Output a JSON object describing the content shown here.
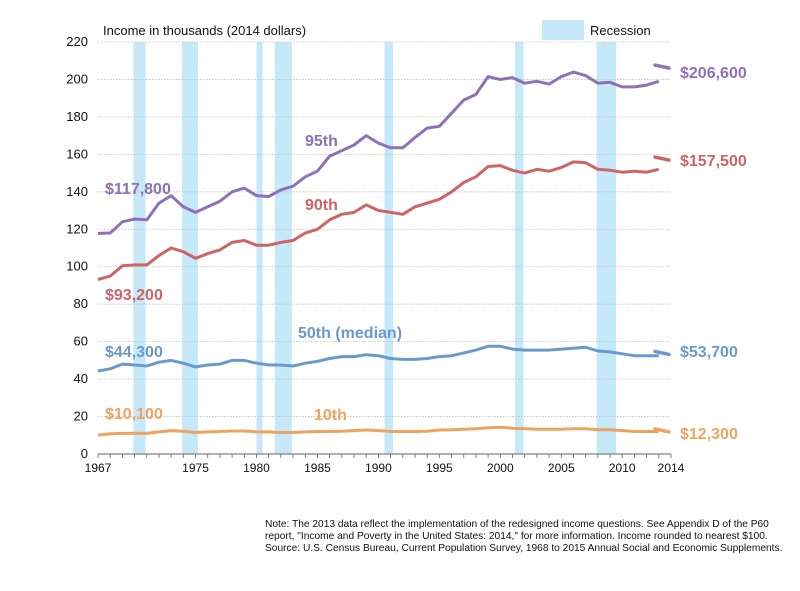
{
  "chart_data": {
    "type": "line",
    "ylabel": "Income  in thousands  (2014 dollars)",
    "ylim": [
      0,
      220
    ],
    "y_ticks": [
      0,
      20,
      40,
      60,
      80,
      100,
      120,
      140,
      160,
      180,
      200,
      220
    ],
    "x_range": [
      1967,
      2014
    ],
    "x_ticks": [
      1967,
      1975,
      1980,
      1985,
      1990,
      1995,
      2000,
      2005,
      2010,
      2014
    ],
    "legend": {
      "recession_label": "Recession",
      "position": "top-right"
    },
    "recessions": [
      [
        1969.9,
        1970.9
      ],
      [
        1973.9,
        1975.2
      ],
      [
        1980.0,
        1980.5
      ],
      [
        1981.5,
        1982.9
      ],
      [
        1990.5,
        1991.2
      ],
      [
        2001.2,
        2001.9
      ],
      [
        2007.9,
        2009.5
      ]
    ],
    "x": [
      1967,
      1968,
      1969,
      1970,
      1971,
      1972,
      1973,
      1974,
      1975,
      1976,
      1977,
      1978,
      1979,
      1980,
      1981,
      1982,
      1983,
      1984,
      1985,
      1986,
      1987,
      1988,
      1989,
      1990,
      1991,
      1992,
      1993,
      1994,
      1995,
      1996,
      1997,
      1998,
      1999,
      2000,
      2001,
      2002,
      2003,
      2004,
      2005,
      2006,
      2007,
      2008,
      2009,
      2010,
      2011,
      2012,
      2013
    ],
    "series": [
      {
        "name": "95th",
        "color": "#8e72b8",
        "values": [
          117.8,
          118,
          124,
          125.5,
          125,
          134,
          138,
          132,
          129,
          132,
          135,
          140,
          142,
          138,
          137.5,
          141,
          143,
          148,
          151,
          159,
          162,
          165,
          170,
          166,
          163.5,
          163.5,
          169,
          174,
          175,
          182,
          189,
          192,
          201.5,
          200,
          201,
          198,
          199,
          197.5,
          201.5,
          204,
          202,
          198,
          198.5,
          196,
          196,
          197,
          199
        ],
        "start_label": "$117,800",
        "end_label": "$206,600",
        "end_value": 206.6
      },
      {
        "name": "90th",
        "color": "#cd6465",
        "values": [
          93.2,
          95,
          100.5,
          101,
          101,
          106,
          110,
          108,
          104.5,
          107,
          109,
          113,
          114,
          111.5,
          111.5,
          113,
          114,
          118,
          120,
          125,
          128,
          129,
          133,
          130,
          129,
          128,
          132,
          134,
          136,
          140,
          145,
          148,
          153.5,
          154,
          151.5,
          150,
          152,
          151,
          153,
          156,
          155.5,
          152,
          151.5,
          150.5,
          151,
          150.5,
          152
        ],
        "start_label": "$93,200",
        "end_label": "$157,500",
        "end_value": 157.5
      },
      {
        "name": "50th (median)",
        "color": "#6a9acd",
        "values": [
          44.3,
          45.5,
          48,
          47.5,
          47,
          49,
          50,
          48.5,
          46.5,
          47.5,
          48,
          50,
          50,
          48.5,
          47.5,
          47.5,
          47,
          48.5,
          49.5,
          51,
          52,
          52,
          53,
          52.5,
          51,
          50.5,
          50.5,
          51,
          52,
          52.5,
          54,
          55.5,
          57.5,
          57.5,
          56,
          55.5,
          55.5,
          55.5,
          56,
          56.5,
          57,
          55,
          54.5,
          53.5,
          52.5,
          52.5,
          52.5
        ],
        "start_label": "$44,300",
        "end_label": "$53,700",
        "end_value": 53.7
      },
      {
        "name": "10th",
        "color": "#f0a35e",
        "values": [
          10.1,
          10.8,
          11,
          11,
          11,
          11.8,
          12.5,
          12.2,
          11.5,
          11.8,
          12,
          12.3,
          12.3,
          11.8,
          11.8,
          11.5,
          11.5,
          11.8,
          12,
          12,
          12.2,
          12.5,
          12.8,
          12.5,
          12,
          12,
          12,
          12.2,
          12.8,
          13,
          13.2,
          13.5,
          14,
          14.3,
          13.8,
          13.5,
          13.2,
          13.2,
          13.2,
          13.5,
          13.5,
          13,
          13,
          12.5,
          12,
          12,
          12
        ],
        "start_label": "$10,100",
        "end_label": "$12,300",
        "end_value": 12.3
      }
    ]
  },
  "note": {
    "text": "Note: The 2013 data reflect the implementation of the redesigned income questions. See Appendix D of the P60 report, \"Income and Poverty in the United States: 2014,\" for more information. Income rounded to nearest $100.",
    "source": "Source: U.S. Census Bureau, Current Population Survey, 1968 to 2015 Annual Social and Economic Supplements."
  }
}
